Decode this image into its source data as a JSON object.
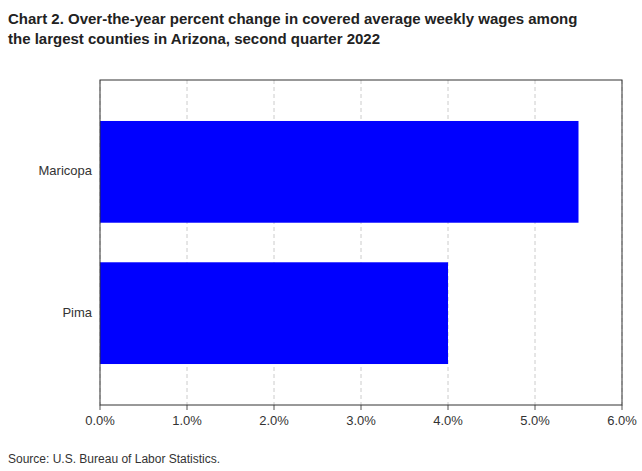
{
  "chart_data": {
    "type": "bar",
    "orientation": "horizontal",
    "title": "Chart 2. Over-the-year percent change in covered average weekly wages among",
    "subtitle": "the largest counties in Arizona, second quarter 2022",
    "source": "Source: U.S. Bureau of Labor Statistics.",
    "categories": [
      "Pima",
      "Maricopa"
    ],
    "values": [
      0.04,
      0.055
    ],
    "color": "#0000FF",
    "xlim": [
      0.0,
      0.06
    ],
    "xticks": [
      {
        "value": 0.0,
        "label": "0.0%"
      },
      {
        "value": 0.01,
        "label": "1.0%"
      },
      {
        "value": 0.02,
        "label": "2.0%"
      },
      {
        "value": 0.03,
        "label": "3.0%"
      },
      {
        "value": 0.04,
        "label": "4.0%"
      },
      {
        "value": 0.05,
        "label": "5.0%"
      },
      {
        "value": 0.06,
        "label": "6.0%"
      }
    ],
    "grid": true
  }
}
